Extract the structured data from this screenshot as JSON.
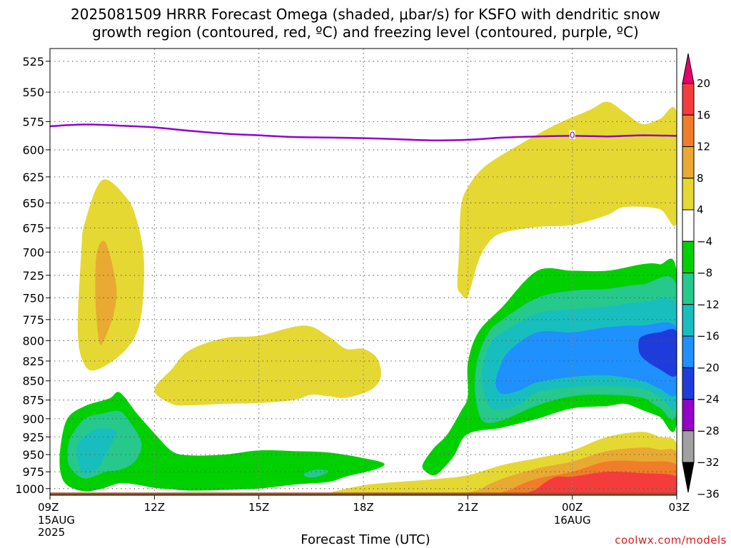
{
  "title_lines": [
    "2025081509 HRRR Forecast Omega (shaded, μbar/s) for KSFO with dendritic snow",
    "growth region (contoured, red, ºC) and freezing level (contoured, purple, ºC)"
  ],
  "xlabel": "Forecast Time (UTC)",
  "credit": "coolwx.com/models",
  "chart_data": {
    "type": "heatmap",
    "x_ticks": [
      {
        "hour": 0,
        "label": "09Z",
        "sub": [
          "15AUG",
          "2025"
        ]
      },
      {
        "hour": 3,
        "label": "12Z",
        "sub": []
      },
      {
        "hour": 6,
        "label": "15Z",
        "sub": []
      },
      {
        "hour": 9,
        "label": "18Z",
        "sub": []
      },
      {
        "hour": 12,
        "label": "21Z",
        "sub": []
      },
      {
        "hour": 15,
        "label": "00Z",
        "sub": [
          "16AUG"
        ]
      },
      {
        "hour": 18,
        "label": "03Z",
        "sub": []
      }
    ],
    "y_ticks": [
      525,
      550,
      575,
      600,
      625,
      650,
      675,
      700,
      725,
      750,
      775,
      800,
      825,
      850,
      875,
      900,
      925,
      950,
      975,
      1000
    ],
    "y_range": [
      515,
      1010
    ],
    "x_range": [
      0,
      18
    ],
    "y_scale": "log-pressure",
    "grid": true,
    "colorbar": {
      "labels": [
        "20",
        "16",
        "12",
        "8",
        "4",
        "−4",
        "−8",
        "−12",
        "−16",
        "−20",
        "−24",
        "−28",
        "−32",
        "−36"
      ],
      "colors": [
        "#e8006a",
        "#f53c3c",
        "#f07d2a",
        "#e8aa32",
        "#e6d832",
        "#ffffff",
        "#00d000",
        "#26c88c",
        "#18bebe",
        "#1e90ff",
        "#1e3cdc",
        "#9600c8",
        "#a0a0a0",
        "#000000"
      ]
    },
    "freezing_level": {
      "label": "0",
      "label_at": [
        15,
        587
      ],
      "points": [
        [
          0,
          579
        ],
        [
          1,
          577.5
        ],
        [
          2,
          578.5
        ],
        [
          3,
          580
        ],
        [
          4,
          583
        ],
        [
          5,
          585.5
        ],
        [
          6,
          587
        ],
        [
          7,
          588.5
        ],
        [
          8,
          589
        ],
        [
          9,
          589.5
        ],
        [
          10,
          590.5
        ],
        [
          11,
          591.5
        ],
        [
          12,
          591
        ],
        [
          13,
          589
        ],
        [
          14,
          588
        ],
        [
          15,
          587.5
        ],
        [
          16,
          588
        ],
        [
          17,
          587
        ],
        [
          18,
          587.5
        ]
      ]
    },
    "omega_regions": [
      {
        "value": "4 to 8",
        "color": "#e6d832",
        "points": [
          [
            0.9,
            700
          ],
          [
            1.0,
            670
          ],
          [
            1.5,
            628
          ],
          [
            2.2,
            645
          ],
          [
            2.5,
            668
          ],
          [
            2.7,
            710
          ],
          [
            2.6,
            775
          ],
          [
            2.2,
            810
          ],
          [
            1.4,
            835
          ],
          [
            1.0,
            830
          ],
          [
            0.8,
            790
          ]
        ]
      },
      {
        "value": "8 to 12",
        "color": "#e8aa32",
        "points": [
          [
            1.35,
            700
          ],
          [
            1.6,
            690
          ],
          [
            1.9,
            735
          ],
          [
            1.85,
            765
          ],
          [
            1.65,
            790
          ],
          [
            1.45,
            805
          ],
          [
            1.35,
            780
          ],
          [
            1.3,
            740
          ]
        ]
      },
      {
        "value": "4 to 8",
        "color": "#e6d832",
        "points": [
          [
            3.0,
            862
          ],
          [
            3.5,
            835
          ],
          [
            4.0,
            812
          ],
          [
            5.0,
            797
          ],
          [
            6.0,
            794
          ],
          [
            7.3,
            782
          ],
          [
            8.0,
            795
          ],
          [
            8.5,
            810
          ],
          [
            9.0,
            810
          ],
          [
            9.4,
            822
          ],
          [
            9.5,
            845
          ],
          [
            9.2,
            862
          ],
          [
            8.5,
            872
          ],
          [
            8.0,
            870
          ],
          [
            7.5,
            868
          ],
          [
            7.0,
            875
          ],
          [
            6.0,
            879
          ],
          [
            5.0,
            880
          ],
          [
            4.0,
            882
          ],
          [
            3.5,
            880
          ]
        ]
      },
      {
        "value": "4 to 8",
        "color": "#e6d832",
        "points": [
          [
            11.7,
            735
          ],
          [
            11.75,
            700
          ],
          [
            11.8,
            655
          ],
          [
            12.0,
            635
          ],
          [
            12.5,
            615
          ],
          [
            13.5,
            595
          ],
          [
            14.5,
            578
          ],
          [
            15.5,
            565
          ],
          [
            16.0,
            558
          ],
          [
            16.5,
            567
          ],
          [
            17.0,
            577
          ],
          [
            17.5,
            573
          ],
          [
            18.0,
            568
          ],
          [
            18.0,
            668
          ],
          [
            17.5,
            656
          ],
          [
            16.5,
            654
          ],
          [
            16.0,
            662
          ],
          [
            15.0,
            672
          ],
          [
            14.0,
            674
          ],
          [
            13.0,
            680
          ],
          [
            12.6,
            690
          ],
          [
            12.3,
            710
          ],
          [
            12.0,
            748
          ],
          [
            11.8,
            745
          ]
        ]
      },
      {
        "value": "-8 to -4",
        "color": "#00d000",
        "points": [
          [
            0.3,
            940
          ],
          [
            0.5,
            900
          ],
          [
            1.0,
            883
          ],
          [
            1.7,
            873
          ],
          [
            2.0,
            865
          ],
          [
            2.5,
            893
          ],
          [
            3.0,
            920
          ],
          [
            3.5,
            945
          ],
          [
            4.0,
            951
          ],
          [
            5.0,
            950
          ],
          [
            6.0,
            944
          ],
          [
            7.0,
            945
          ],
          [
            8.0,
            947
          ],
          [
            9.0,
            955
          ],
          [
            9.6,
            963
          ],
          [
            9.3,
            972
          ],
          [
            8.5,
            982
          ],
          [
            8.0,
            990
          ],
          [
            7.0,
            994
          ],
          [
            6.0,
            1000
          ],
          [
            5.0,
            1002
          ],
          [
            4.0,
            1003
          ],
          [
            3.5,
            1001
          ],
          [
            3.0,
            999
          ],
          [
            2.5,
            994
          ],
          [
            2.0,
            992
          ],
          [
            1.5,
            1000
          ],
          [
            1.0,
            1004
          ],
          [
            0.5,
            995
          ],
          [
            0.3,
            975
          ]
        ]
      },
      {
        "value": "-12 to -8",
        "color": "#26c88c",
        "points": [
          [
            0.6,
            925
          ],
          [
            1.0,
            900
          ],
          [
            1.5,
            893
          ],
          [
            2.0,
            890
          ],
          [
            2.3,
            905
          ],
          [
            2.6,
            928
          ],
          [
            2.6,
            945
          ],
          [
            2.4,
            962
          ],
          [
            2.0,
            972
          ],
          [
            1.6,
            975
          ],
          [
            1.0,
            985
          ],
          [
            0.6,
            970
          ],
          [
            0.5,
            950
          ]
        ]
      },
      {
        "value": "-16 to -12",
        "color": "#18bebe",
        "points": [
          [
            0.8,
            935
          ],
          [
            1.2,
            917
          ],
          [
            1.6,
            913
          ],
          [
            1.9,
            918
          ],
          [
            1.8,
            932
          ],
          [
            1.6,
            950
          ],
          [
            1.4,
            968
          ],
          [
            1.0,
            978
          ],
          [
            0.8,
            960
          ]
        ]
      },
      {
        "value": "-12 to -8",
        "color": "#26c88c",
        "points": [
          [
            7.3,
            978
          ],
          [
            7.6,
            972
          ],
          [
            8.0,
            974
          ],
          [
            7.7,
            982
          ],
          [
            7.4,
            983
          ]
        ]
      },
      {
        "value": "-8 to -4",
        "color": "#00d000",
        "points": [
          [
            10.7,
            965
          ],
          [
            11.0,
            942
          ],
          [
            11.4,
            922
          ],
          [
            11.8,
            890
          ],
          [
            12.0,
            870
          ],
          [
            12.0,
            828
          ],
          [
            12.3,
            790
          ],
          [
            13.0,
            760
          ],
          [
            14.0,
            720
          ],
          [
            15.0,
            720
          ],
          [
            16.0,
            720
          ],
          [
            17.0,
            713
          ],
          [
            17.5,
            713
          ],
          [
            18.0,
            722
          ],
          [
            18.0,
            905
          ],
          [
            17.5,
            897
          ],
          [
            17.0,
            888
          ],
          [
            16.5,
            880
          ],
          [
            16.0,
            883
          ],
          [
            15.0,
            886
          ],
          [
            14.0,
            900
          ],
          [
            13.0,
            912
          ],
          [
            12.0,
            921
          ],
          [
            11.6,
            952
          ],
          [
            11.2,
            975
          ],
          [
            11.0,
            980
          ],
          [
            10.8,
            975
          ]
        ]
      },
      {
        "value": "-12 to -8",
        "color": "#26c88c",
        "points": [
          [
            12.2,
            855
          ],
          [
            12.3,
            820
          ],
          [
            12.6,
            790
          ],
          [
            13.0,
            775
          ],
          [
            14.0,
            750
          ],
          [
            15.0,
            742
          ],
          [
            16.0,
            740
          ],
          [
            17.0,
            735
          ],
          [
            18.0,
            737
          ],
          [
            18.0,
            890
          ],
          [
            17.5,
            885
          ],
          [
            17.0,
            872
          ],
          [
            16.0,
            868
          ],
          [
            15.0,
            870
          ],
          [
            14.0,
            882
          ],
          [
            13.0,
            902
          ],
          [
            12.5,
            905
          ],
          [
            12.3,
            890
          ]
        ]
      },
      {
        "value": "-16 to -12",
        "color": "#18bebe",
        "points": [
          [
            12.4,
            850
          ],
          [
            12.5,
            820
          ],
          [
            12.7,
            800
          ],
          [
            13.0,
            790
          ],
          [
            14.0,
            768
          ],
          [
            15.0,
            763
          ],
          [
            16.0,
            760
          ],
          [
            17.0,
            755
          ],
          [
            18.0,
            760
          ],
          [
            18.0,
            880
          ],
          [
            17.5,
            870
          ],
          [
            17.0,
            860
          ],
          [
            16.0,
            857
          ],
          [
            15.0,
            858
          ],
          [
            14.0,
            865
          ],
          [
            13.5,
            880
          ],
          [
            13.0,
            887
          ],
          [
            12.6,
            882
          ]
        ]
      },
      {
        "value": "-20 to -16",
        "color": "#1e90ff",
        "points": [
          [
            12.8,
            855
          ],
          [
            12.9,
            835
          ],
          [
            13.2,
            812
          ],
          [
            14.0,
            790
          ],
          [
            15.0,
            790
          ],
          [
            16.0,
            784
          ],
          [
            17.0,
            782
          ],
          [
            18.0,
            785
          ],
          [
            18.0,
            865
          ],
          [
            17.5,
            860
          ],
          [
            17.0,
            850
          ],
          [
            16.0,
            843
          ],
          [
            15.0,
            845
          ],
          [
            14.0,
            852
          ],
          [
            13.5,
            862
          ],
          [
            13.0,
            867
          ]
        ]
      },
      {
        "value": "-24 to -20",
        "color": "#1e3cdc",
        "points": [
          [
            17.0,
            795
          ],
          [
            17.5,
            790
          ],
          [
            18.0,
            790
          ],
          [
            18.0,
            842
          ],
          [
            17.5,
            835
          ],
          [
            17.0,
            820
          ],
          [
            16.9,
            805
          ]
        ]
      },
      {
        "value": "4 to 8",
        "color": "#e6d832",
        "points": [
          [
            8.0,
            1008
          ],
          [
            9.0,
            995
          ],
          [
            10.0,
            990
          ],
          [
            11.0,
            986
          ],
          [
            12.0,
            980
          ],
          [
            13.0,
            965
          ],
          [
            14.0,
            955
          ],
          [
            15.0,
            944
          ],
          [
            16.0,
            925
          ],
          [
            17.0,
            918
          ],
          [
            17.5,
            925
          ],
          [
            18.0,
            935
          ],
          [
            18.0,
            1010
          ],
          [
            9.0,
            1010
          ]
        ]
      },
      {
        "value": "8 to 12",
        "color": "#e8aa32",
        "points": [
          [
            12.4,
            1000
          ],
          [
            13.0,
            985
          ],
          [
            14.0,
            970
          ],
          [
            15.0,
            960
          ],
          [
            16.0,
            945
          ],
          [
            17.0,
            940
          ],
          [
            17.5,
            943
          ],
          [
            18.0,
            948
          ],
          [
            18.0,
            1010
          ],
          [
            12.4,
            1010
          ]
        ]
      },
      {
        "value": "12 to 16",
        "color": "#f07d2a",
        "points": [
          [
            13.3,
            1000
          ],
          [
            14.0,
            985
          ],
          [
            15.0,
            975
          ],
          [
            16.0,
            960
          ],
          [
            17.0,
            960
          ],
          [
            18.0,
            965
          ],
          [
            18.0,
            1010
          ],
          [
            13.3,
            1010
          ]
        ]
      },
      {
        "value": "16 to 20",
        "color": "#f53c3c",
        "points": [
          [
            14.0,
            1000
          ],
          [
            14.5,
            983
          ],
          [
            15.0,
            982
          ],
          [
            16.0,
            975
          ],
          [
            17.0,
            977
          ],
          [
            18.0,
            982
          ],
          [
            18.0,
            1010
          ],
          [
            14.0,
            1010
          ]
        ]
      }
    ],
    "surface_band": {
      "color": "#a0522d",
      "from_pressure": 1006,
      "to_pressure": 1010
    }
  }
}
